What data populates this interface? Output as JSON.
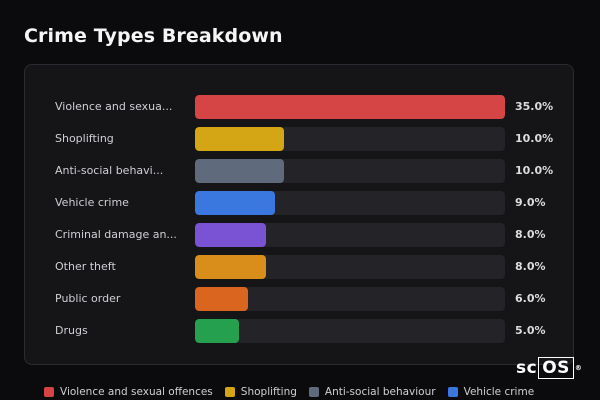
{
  "title": "Crime Types Breakdown",
  "chart_data": {
    "type": "bar",
    "orientation": "horizontal",
    "title": "Crime Types Breakdown",
    "xlim": [
      0,
      35
    ],
    "categories": [
      "Violence and sexual offences",
      "Shoplifting",
      "Anti-social behaviour",
      "Vehicle crime",
      "Criminal damage and arson",
      "Other theft",
      "Public order",
      "Drugs"
    ],
    "row_labels": [
      "Violence and sexua...",
      "Shoplifting",
      "Anti-social behavi...",
      "Vehicle crime",
      "Criminal damage an...",
      "Other theft",
      "Public order",
      "Drugs"
    ],
    "values": [
      35.0,
      10.0,
      10.0,
      9.0,
      8.0,
      8.0,
      6.0,
      5.0
    ],
    "value_labels": [
      "35.0%",
      "10.0%",
      "10.0%",
      "9.0%",
      "8.0%",
      "8.0%",
      "6.0%",
      "5.0%"
    ],
    "colors": [
      "#d64545",
      "#d4a514",
      "#5f6b7d",
      "#3a78e0",
      "#7a52d4",
      "#d98e1c",
      "#d9651f",
      "#25a04e"
    ],
    "track_color": "#232328",
    "legend": {
      "placement": "bottom",
      "entries": [
        {
          "label": "Violence and sexual offences",
          "color": "#d64545"
        },
        {
          "label": "Shoplifting",
          "color": "#d4a514"
        },
        {
          "label": "Anti-social behaviour",
          "color": "#5f6b7d"
        },
        {
          "label": "Vehicle crime",
          "color": "#3a78e0"
        }
      ]
    }
  },
  "logo": {
    "prefix": "sc",
    "boxed": "OS",
    "mark": "®"
  }
}
